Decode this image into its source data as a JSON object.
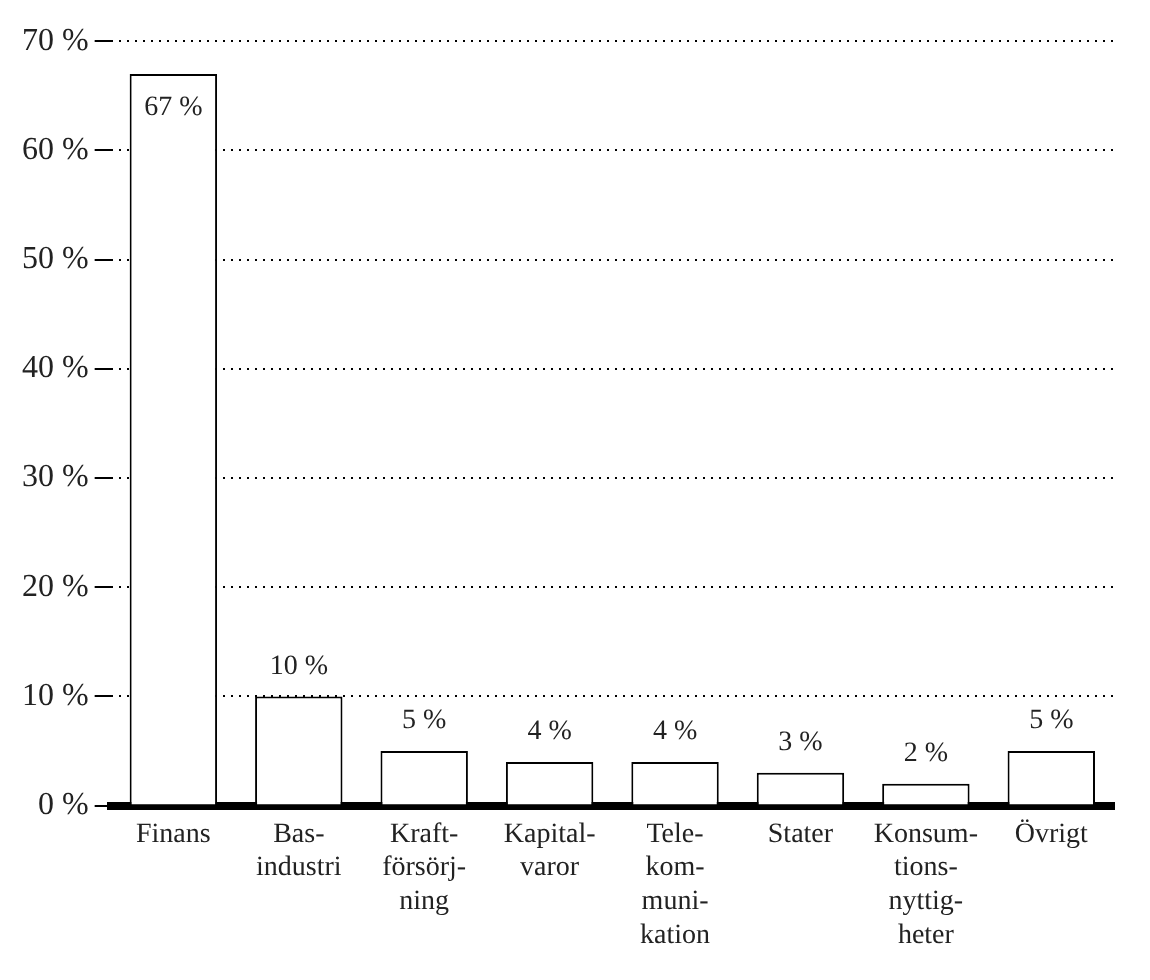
{
  "chart_data": {
    "type": "bar",
    "categories": [
      "Finans",
      "Bas-\nindustri",
      "Kraft-\nförsörj-\nning",
      "Kapital-\nvaror",
      "Tele-\nkom-\nmuni-\nkation",
      "Stater",
      "Konsum-\ntions-\nnyttig-\nheter",
      "Övrigt"
    ],
    "values": [
      67,
      10,
      5,
      4,
      4,
      3,
      2,
      5
    ],
    "value_labels": [
      "67 %",
      "10 %",
      "5 %",
      "4 %",
      "4 %",
      "3 %",
      "2 %",
      "5 %"
    ],
    "color": "#ffffff",
    "ylim": [
      0,
      70
    ],
    "yticks": [
      {
        "value": 0,
        "label": "0 %"
      },
      {
        "value": 10,
        "label": "10 %"
      },
      {
        "value": 20,
        "label": "20 %"
      },
      {
        "value": 30,
        "label": "30 %"
      },
      {
        "value": 40,
        "label": "40 %"
      },
      {
        "value": 50,
        "label": "50 %"
      },
      {
        "value": 60,
        "label": "60 %"
      },
      {
        "value": 70,
        "label": "70 %"
      }
    ],
    "grid": "y"
  }
}
